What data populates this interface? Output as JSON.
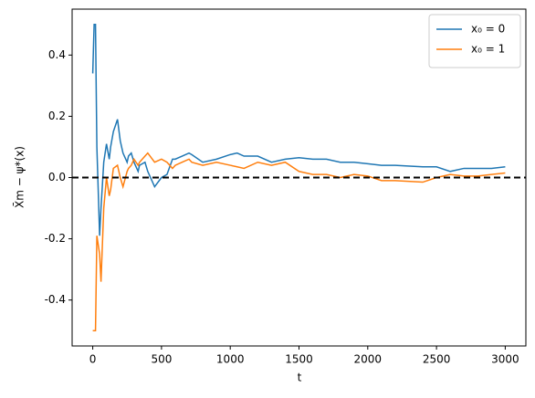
{
  "chart_data": {
    "type": "line",
    "xlabel": "t",
    "ylabel": "X̄m − ψ*(x)",
    "x": [
      0,
      10,
      20,
      30,
      50,
      60,
      80,
      100,
      120,
      130,
      150,
      180,
      200,
      220,
      250,
      260,
      280,
      300,
      330,
      340,
      380,
      400,
      450,
      500,
      540,
      580,
      600,
      650,
      700,
      720,
      800,
      900,
      1000,
      1050,
      1100,
      1200,
      1300,
      1400,
      1500,
      1600,
      1700,
      1800,
      1900,
      2000,
      2100,
      2200,
      2400,
      2500,
      2600,
      2700,
      2800,
      2900,
      3000
    ],
    "series": [
      {
        "name": "x₀ = 0",
        "color": "#1f77b4",
        "values": [
          0.34,
          0.5,
          0.5,
          0.1,
          -0.19,
          -0.1,
          0.05,
          0.11,
          0.06,
          0.1,
          0.15,
          0.19,
          0.12,
          0.08,
          0.05,
          0.07,
          0.08,
          0.05,
          0.02,
          0.04,
          0.05,
          0.02,
          -0.03,
          0.0,
          0.01,
          0.06,
          0.06,
          0.07,
          0.08,
          0.075,
          0.05,
          0.06,
          0.075,
          0.08,
          0.07,
          0.07,
          0.05,
          0.06,
          0.065,
          0.06,
          0.06,
          0.05,
          0.05,
          0.045,
          0.04,
          0.04,
          0.035,
          0.035,
          0.02,
          0.03,
          0.03,
          0.03,
          0.035
        ]
      },
      {
        "name": "x₀ = 1",
        "color": "#ff7f0e",
        "values": [
          -0.5,
          -0.5,
          -0.5,
          -0.19,
          -0.25,
          -0.34,
          -0.1,
          0.0,
          -0.06,
          -0.04,
          0.03,
          0.04,
          0.0,
          -0.03,
          0.02,
          0.03,
          0.04,
          0.06,
          0.04,
          0.05,
          0.07,
          0.08,
          0.05,
          0.06,
          0.05,
          0.03,
          0.04,
          0.05,
          0.06,
          0.05,
          0.04,
          0.05,
          0.04,
          0.035,
          0.03,
          0.05,
          0.04,
          0.05,
          0.02,
          0.01,
          0.01,
          0.0,
          0.01,
          0.005,
          -0.01,
          -0.01,
          -0.015,
          0.0,
          0.01,
          0.005,
          0.005,
          0.01,
          0.015
        ]
      }
    ],
    "hline": 0,
    "xlim": [
      -150,
      3150
    ],
    "ylim": [
      -0.55,
      0.55
    ],
    "xticks": [
      0,
      500,
      1000,
      1500,
      2000,
      2500,
      3000
    ],
    "yticks": [
      -0.4,
      -0.2,
      {
        "value": 0,
        "label": "0.0"
      },
      0.2,
      0.4
    ],
    "legend": "upper right"
  }
}
